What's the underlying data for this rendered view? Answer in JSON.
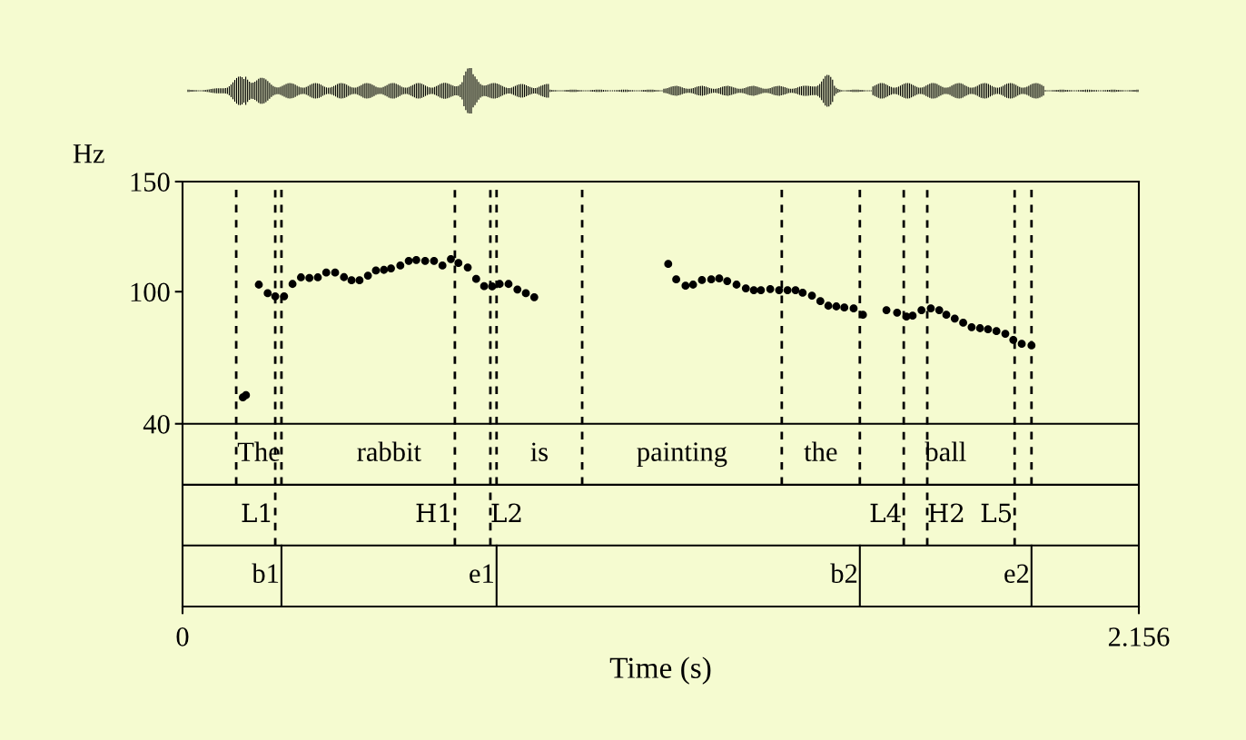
{
  "chart_data": {
    "type": "scatter",
    "ylabel": "Hz",
    "xlabel": "Time (s)",
    "xlim": [
      0,
      2.156
    ],
    "xticks": [
      0,
      2.156
    ],
    "ylim": [
      -43,
      150
    ],
    "yticks": [
      40,
      100,
      150
    ],
    "grid": false,
    "marker": "circle",
    "series": [
      {
        "color": "#000000",
        "x": [
          0.136,
          0.143,
          0.172,
          0.192,
          0.209,
          0.229,
          0.248,
          0.267,
          0.286,
          0.305,
          0.324,
          0.344,
          0.364,
          0.381,
          0.399,
          0.418,
          0.436,
          0.454,
          0.47,
          0.491,
          0.51,
          0.527,
          0.547,
          0.567,
          0.586,
          0.605,
          0.622,
          0.643,
          0.662,
          0.68,
          0.698,
          0.715,
          0.735,
          0.755,
          0.774,
          0.793,
          1.095,
          1.113,
          1.134,
          1.151,
          1.171,
          1.192,
          1.21,
          1.228,
          1.249,
          1.27,
          1.288,
          1.304,
          1.325,
          1.345,
          1.364,
          1.382,
          1.398,
          1.419,
          1.438,
          1.456,
          1.474,
          1.492,
          1.513,
          1.534,
          1.587,
          1.611,
          1.632,
          1.646,
          1.666,
          1.687,
          1.706,
          1.722,
          1.741,
          1.76,
          1.779,
          1.798,
          1.816,
          1.835,
          1.855,
          1.873,
          1.892,
          1.914
        ],
        "values": [
          52,
          53,
          103.2,
          99.3,
          97.9,
          97.9,
          103.5,
          106.5,
          106.2,
          106.5,
          108.7,
          108.7,
          106.6,
          105.2,
          105.2,
          107.3,
          109.6,
          109.9,
          110.6,
          111.9,
          114.0,
          114.4,
          114.0,
          114.0,
          111.9,
          114.8,
          113.0,
          111.0,
          105.8,
          102.5,
          102.4,
          103.5,
          103.5,
          101.0,
          99.3,
          97.5,
          112.6,
          105.6,
          102.7,
          103.2,
          105.3,
          105.6,
          106.0,
          104.8,
          103.2,
          101.5,
          100.7,
          100.7,
          101.2,
          100.7,
          100.7,
          100.7,
          99.5,
          98.2,
          95.7,
          93.6,
          93.3,
          92.8,
          92.4,
          89.5,
          91.6,
          90.5,
          88.7,
          89.1,
          91.6,
          92.4,
          91.6,
          89.5,
          87.8,
          85.9,
          83.9,
          83.4,
          82.9,
          82.1,
          80.9,
          78.1,
          76.3,
          75.6
        ]
      }
    ],
    "ref_lines": [
      {
        "axis": "y",
        "value": 40,
        "line_style": "solid",
        "color": "#000000"
      },
      {
        "axis": "y",
        "value": 12.3,
        "line_style": "solid",
        "color": "#000000"
      },
      {
        "axis": "y",
        "value": -15.3,
        "line_style": "solid",
        "color": "#000000"
      },
      {
        "axis": "x",
        "value": 0.121,
        "label": "The",
        "line_style": "dashed",
        "color": "#000000"
      },
      {
        "axis": "x",
        "value": 0.223,
        "label": "rabbit",
        "line_style": "dashed",
        "color": "#000000"
      },
      {
        "axis": "x",
        "value": 0.708,
        "label": "is",
        "line_style": "dashed",
        "color": "#000000"
      },
      {
        "axis": "x",
        "value": 0.901,
        "label": "painting",
        "line_style": "dashed",
        "color": "#000000"
      },
      {
        "axis": "x",
        "value": 1.351,
        "label": "the",
        "line_style": "dashed",
        "color": "#000000"
      },
      {
        "axis": "x",
        "value": 1.527,
        "label": "ball",
        "line_style": "dashed",
        "color": "#000000"
      },
      {
        "axis": "x",
        "value": 1.914,
        "line_style": "dashed",
        "color": "#000000"
      },
      {
        "axis": "x",
        "value": 0.209,
        "label": "L1",
        "line_style": "dashed",
        "color": "#000000"
      },
      {
        "axis": "x",
        "value": 0.614,
        "label": "H1",
        "line_style": "dashed",
        "color": "#000000"
      },
      {
        "axis": "x",
        "value": 0.694,
        "label": "L2",
        "line_style": "dashed",
        "color": "#000000"
      },
      {
        "axis": "x",
        "value": 1.626,
        "label": "L4",
        "line_style": "dashed",
        "color": "#000000"
      },
      {
        "axis": "x",
        "value": 1.679,
        "label": "H2",
        "line_style": "dashed",
        "color": "#000000"
      },
      {
        "axis": "x",
        "value": 1.876,
        "label": "L5",
        "line_style": "dashed",
        "color": "#000000"
      },
      {
        "axis": "x",
        "value": 0.223,
        "label": "b1",
        "line_style": "solid",
        "color": "#000000"
      },
      {
        "axis": "x",
        "value": 0.708,
        "label": "e1",
        "line_style": "solid",
        "color": "#000000"
      },
      {
        "axis": "x",
        "value": 1.527,
        "label": "b2",
        "line_style": "solid",
        "color": "#000000"
      },
      {
        "axis": "x",
        "value": 1.914,
        "label": "e2",
        "line_style": "solid",
        "color": "#000000"
      }
    ]
  }
}
